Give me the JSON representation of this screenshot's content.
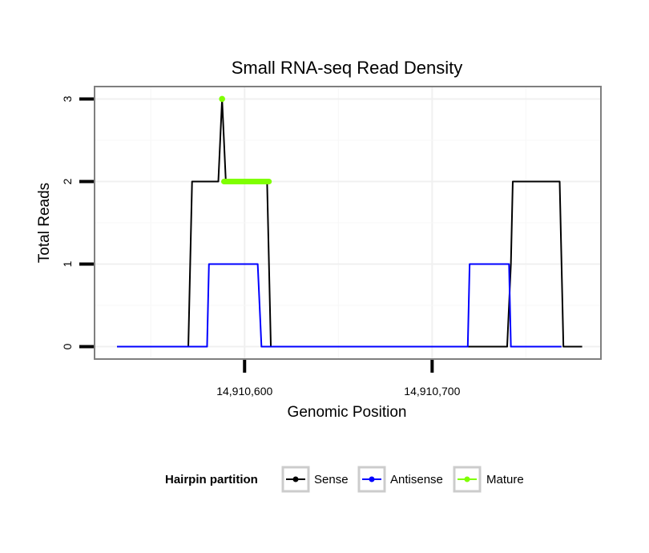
{
  "chart_data": {
    "type": "line",
    "title": "Small RNA-seq Read Density",
    "xlabel": "Genomic Position",
    "ylabel": "Total Reads",
    "xlim": [
      14910520,
      14910790
    ],
    "ylim": [
      -0.15,
      3.15
    ],
    "x_ticks": [
      14910600,
      14910700
    ],
    "x_tick_labels": [
      "14,910,600",
      "14,910,700"
    ],
    "y_ticks": [
      0,
      1,
      2,
      3
    ],
    "y_tick_labels": [
      "0",
      "1",
      "2",
      "3"
    ],
    "grid": true,
    "legend": {
      "title": "Hairpin partition",
      "position": "bottom",
      "entries": [
        "Sense",
        "Antisense",
        "Mature"
      ]
    },
    "series": [
      {
        "name": "Sense",
        "color": "#000000",
        "points": [
          [
            14910532,
            0
          ],
          [
            14910570,
            0
          ],
          [
            14910572,
            2
          ],
          [
            14910586,
            2
          ],
          [
            14910588,
            3
          ],
          [
            14910590,
            2
          ],
          [
            14910612,
            2
          ],
          [
            14910614,
            0
          ],
          [
            14910740,
            0
          ],
          [
            14910742,
            1
          ],
          [
            14910743,
            2
          ],
          [
            14910768,
            2
          ],
          [
            14910770,
            0
          ],
          [
            14910780,
            0
          ]
        ]
      },
      {
        "name": "Antisense",
        "color": "#0000ff",
        "points": [
          [
            14910532,
            0
          ],
          [
            14910580,
            0
          ],
          [
            14910581,
            1
          ],
          [
            14910607,
            1
          ],
          [
            14910609,
            0
          ],
          [
            14910719,
            0
          ],
          [
            14910720,
            1
          ],
          [
            14910741,
            1
          ],
          [
            14910742,
            0
          ],
          [
            14910769,
            0
          ]
        ]
      },
      {
        "name": "Mature",
        "color": "#7fff00",
        "points": [
          [
            14910588,
            3
          ]
        ],
        "segments": [
          [
            [
              14910589,
              2
            ],
            [
              14910613,
              2
            ]
          ]
        ]
      }
    ]
  }
}
